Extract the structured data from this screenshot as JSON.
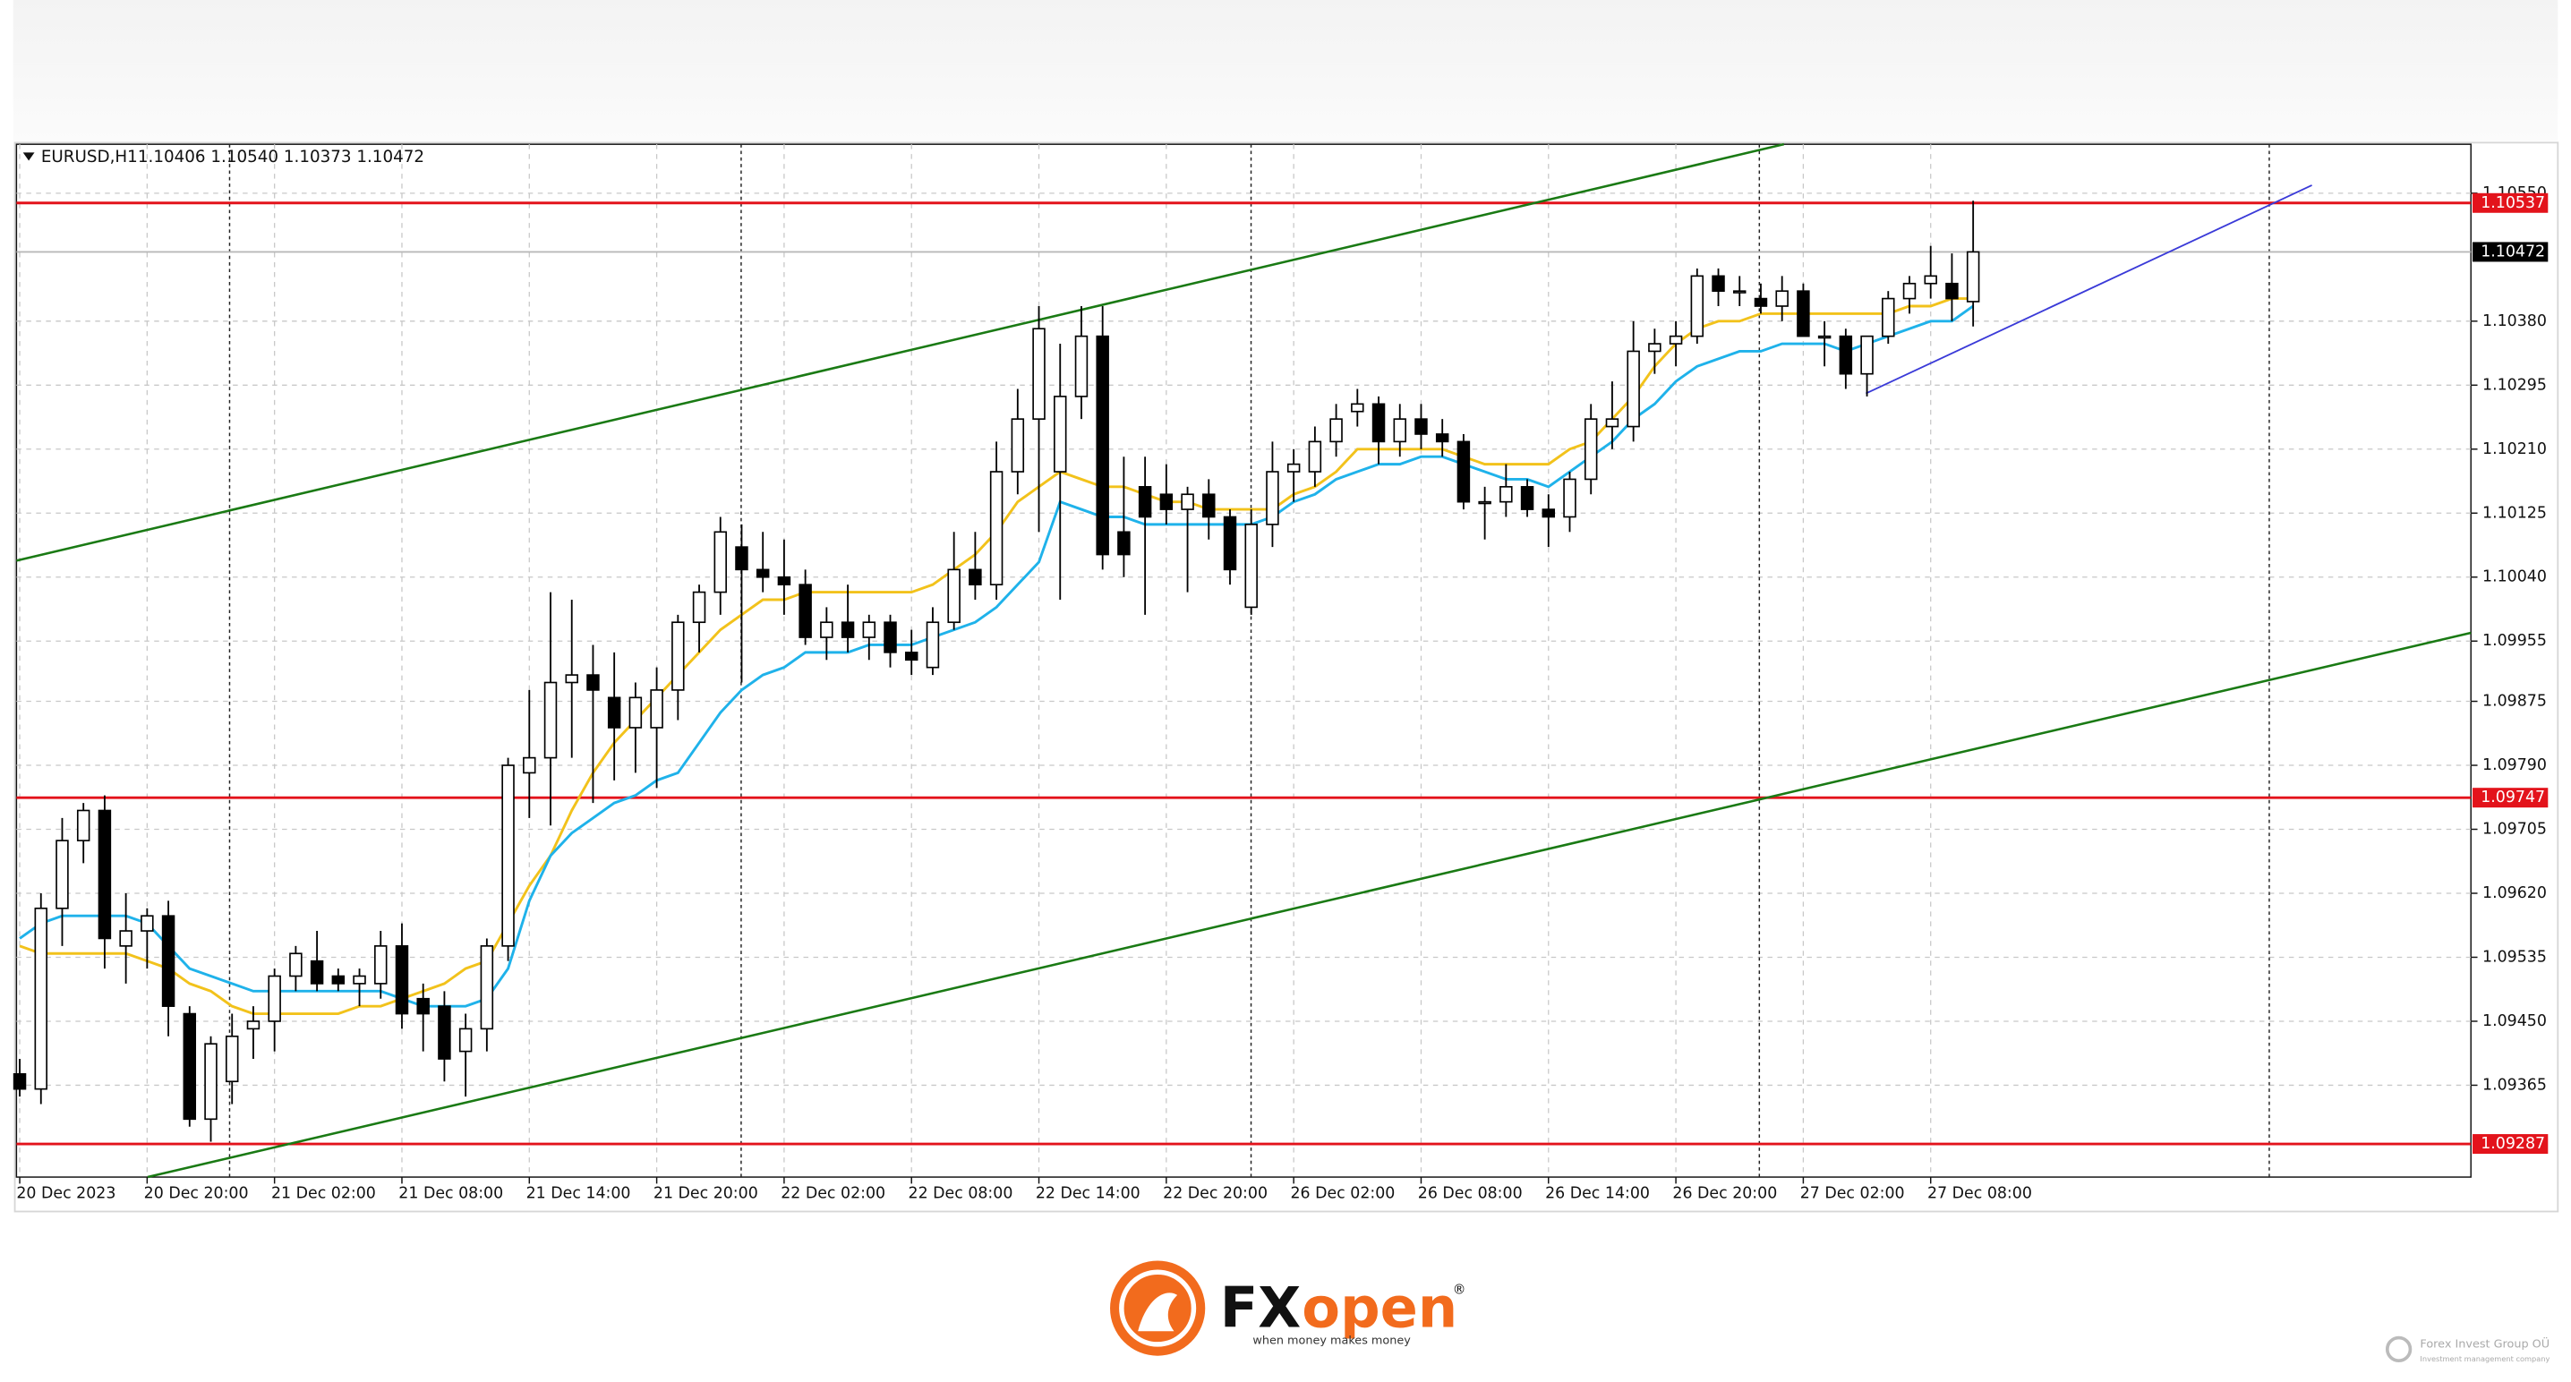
{
  "chart_data": {
    "type": "candlestick",
    "symbol": "EURUSD,H1",
    "quote": "1.10406 1.10540 1.10373 1.10472",
    "categories": [
      "20 Dec 2023",
      null,
      null,
      null,
      null,
      null,
      "20 Dec 20:00",
      null,
      null,
      null,
      null,
      null,
      "21 Dec 02:00",
      null,
      null,
      null,
      null,
      null,
      "21 Dec 08:00",
      null,
      null,
      null,
      null,
      null,
      "21 Dec 14:00",
      null,
      null,
      null,
      null,
      null,
      "21 Dec 20:00",
      null,
      null,
      null,
      null,
      null,
      "22 Dec 02:00",
      null,
      null,
      null,
      null,
      null,
      "22 Dec 08:00",
      null,
      null,
      null,
      null,
      null,
      "22 Dec 14:00",
      null,
      null,
      null,
      null,
      null,
      "22 Dec 20:00",
      null,
      null,
      null,
      null,
      null,
      "26 Dec 02:00",
      null,
      null,
      null,
      null,
      null,
      "26 Dec 08:00",
      null,
      null,
      null,
      null,
      null,
      "26 Dec 14:00",
      null,
      null,
      null,
      null,
      null,
      "26 Dec 20:00",
      null,
      null,
      null,
      null,
      null,
      "27 Dec 02:00",
      null,
      null,
      null,
      null,
      null,
      "27 Dec 08:00",
      null,
      null
    ],
    "ohlc": [
      [
        1.0938,
        1.094,
        1.0935,
        1.0936
      ],
      [
        1.0936,
        1.0962,
        1.0934,
        1.096
      ],
      [
        1.096,
        1.0972,
        1.0955,
        1.0969
      ],
      [
        1.0969,
        1.0974,
        1.0966,
        1.0973
      ],
      [
        1.0973,
        1.0975,
        1.0952,
        1.0956
      ],
      [
        1.0955,
        1.0962,
        1.095,
        1.0957
      ],
      [
        1.0957,
        1.096,
        1.0952,
        1.0959
      ],
      [
        1.0959,
        1.0961,
        1.0943,
        1.0947
      ],
      [
        1.0946,
        1.0947,
        1.0931,
        1.0932
      ],
      [
        1.0932,
        1.0943,
        1.0929,
        1.0942
      ],
      [
        1.0937,
        1.0946,
        1.0934,
        1.0943
      ],
      [
        1.0944,
        1.0947,
        1.094,
        1.0945
      ],
      [
        1.0945,
        1.0952,
        1.0941,
        1.0951
      ],
      [
        1.0951,
        1.0955,
        1.0949,
        1.0954
      ],
      [
        1.0953,
        1.0957,
        1.0949,
        1.095
      ],
      [
        1.0951,
        1.0952,
        1.0949,
        1.095
      ],
      [
        1.095,
        1.0952,
        1.0947,
        1.0951
      ],
      [
        1.095,
        1.0957,
        1.0948,
        1.0955
      ],
      [
        1.0955,
        1.0958,
        1.0944,
        1.0946
      ],
      [
        1.0948,
        1.095,
        1.0941,
        1.0946
      ],
      [
        1.0947,
        1.0949,
        1.0937,
        1.094
      ],
      [
        1.0941,
        1.0946,
        1.0935,
        1.0944
      ],
      [
        1.0944,
        1.0956,
        1.0941,
        1.0955
      ],
      [
        1.0955,
        1.098,
        1.0953,
        1.0979
      ],
      [
        1.0978,
        1.0989,
        1.0972,
        1.098
      ],
      [
        1.098,
        1.1002,
        1.0971,
        1.099
      ],
      [
        1.099,
        1.1001,
        1.098,
        1.0991
      ],
      [
        1.0991,
        1.0995,
        1.0974,
        1.0989
      ],
      [
        1.0988,
        1.0994,
        1.0977,
        1.0984
      ],
      [
        1.0984,
        1.099,
        1.0978,
        1.0988
      ],
      [
        1.0984,
        1.0992,
        1.0976,
        1.0989
      ],
      [
        1.0989,
        1.0999,
        1.0985,
        1.0998
      ],
      [
        1.0998,
        1.1003,
        1.0994,
        1.1002
      ],
      [
        1.1002,
        1.1012,
        1.0999,
        1.101
      ],
      [
        1.1008,
        1.1011,
        1.099,
        1.1005
      ],
      [
        1.1005,
        1.101,
        1.1002,
        1.1004
      ],
      [
        1.1004,
        1.1009,
        1.0999,
        1.1003
      ],
      [
        1.1003,
        1.1005,
        1.0995,
        1.0996
      ],
      [
        1.0996,
        1.1,
        1.0993,
        1.0998
      ],
      [
        1.0998,
        1.1003,
        1.0994,
        1.0996
      ],
      [
        1.0996,
        1.0999,
        1.0993,
        1.0998
      ],
      [
        1.0998,
        1.0999,
        1.0992,
        1.0994
      ],
      [
        1.0994,
        1.0997,
        1.0991,
        1.0993
      ],
      [
        1.0992,
        1.1,
        1.0991,
        1.0998
      ],
      [
        1.0998,
        1.101,
        1.0997,
        1.1005
      ],
      [
        1.1005,
        1.101,
        1.1001,
        1.1003
      ],
      [
        1.1003,
        1.1022,
        1.1001,
        1.1018
      ],
      [
        1.1018,
        1.1029,
        1.1015,
        1.1025
      ],
      [
        1.1025,
        1.104,
        1.101,
        1.1037
      ],
      [
        1.1018,
        1.1035,
        1.1001,
        1.1028
      ],
      [
        1.1028,
        1.104,
        1.1025,
        1.1036
      ],
      [
        1.1036,
        1.104,
        1.1005,
        1.1007
      ],
      [
        1.101,
        1.102,
        1.1004,
        1.1007
      ],
      [
        1.1016,
        1.102,
        1.0999,
        1.1012
      ],
      [
        1.1015,
        1.1019,
        1.1011,
        1.1013
      ],
      [
        1.1013,
        1.1016,
        1.1002,
        1.1015
      ],
      [
        1.1015,
        1.1017,
        1.1009,
        1.1012
      ],
      [
        1.1012,
        1.1013,
        1.1003,
        1.1005
      ],
      [
        1.1,
        1.1013,
        1.0999,
        1.1011
      ],
      [
        1.1011,
        1.1022,
        1.1008,
        1.1018
      ],
      [
        1.1018,
        1.1021,
        1.1014,
        1.1019
      ],
      [
        1.1018,
        1.1024,
        1.1016,
        1.1022
      ],
      [
        1.1022,
        1.1027,
        1.102,
        1.1025
      ],
      [
        1.1026,
        1.1029,
        1.1024,
        1.1027
      ],
      [
        1.1027,
        1.1028,
        1.1019,
        1.1022
      ],
      [
        1.1022,
        1.1027,
        1.102,
        1.1025
      ],
      [
        1.1025,
        1.1027,
        1.1021,
        1.1023
      ],
      [
        1.1023,
        1.1025,
        1.102,
        1.1022
      ],
      [
        1.1022,
        1.1023,
        1.1013,
        1.1014
      ],
      [
        1.1014,
        1.1016,
        1.1009,
        1.1014
      ],
      [
        1.1014,
        1.1019,
        1.1012,
        1.1016
      ],
      [
        1.1016,
        1.1017,
        1.1012,
        1.1013
      ],
      [
        1.1013,
        1.1015,
        1.1008,
        1.1012
      ],
      [
        1.1012,
        1.1018,
        1.101,
        1.1017
      ],
      [
        1.1017,
        1.1027,
        1.1015,
        1.1025
      ],
      [
        1.1024,
        1.103,
        1.1021,
        1.1025
      ],
      [
        1.1024,
        1.1038,
        1.1022,
        1.1034
      ],
      [
        1.1034,
        1.1037,
        1.1031,
        1.1035
      ],
      [
        1.1035,
        1.1038,
        1.1032,
        1.1036
      ],
      [
        1.1036,
        1.1045,
        1.1035,
        1.1044
      ],
      [
        1.1044,
        1.1045,
        1.104,
        1.1042
      ],
      [
        1.1042,
        1.1044,
        1.104,
        1.1042
      ],
      [
        1.1041,
        1.1043,
        1.1039,
        1.104
      ],
      [
        1.104,
        1.1044,
        1.1038,
        1.1042
      ],
      [
        1.1042,
        1.1043,
        1.1036,
        1.1036
      ],
      [
        1.1036,
        1.1038,
        1.1032,
        1.1036
      ],
      [
        1.1036,
        1.1037,
        1.1029,
        1.1031
      ],
      [
        1.1031,
        1.1036,
        1.1028,
        1.1036
      ],
      [
        1.1036,
        1.1042,
        1.1035,
        1.1041
      ],
      [
        1.1041,
        1.1044,
        1.1039,
        1.1043
      ],
      [
        1.1043,
        1.1048,
        1.1041,
        1.1044
      ],
      [
        1.1043,
        1.1047,
        1.1038,
        1.1041
      ],
      [
        1.10406,
        1.1054,
        1.10373,
        1.10472
      ]
    ],
    "lines": [
      {
        "color": "#f2c21b",
        "values": [
          1.0955,
          1.0954,
          1.0954,
          1.0954,
          1.0954,
          1.0954,
          1.0953,
          1.0952,
          1.095,
          1.0949,
          1.0947,
          1.0946,
          1.0946,
          1.0946,
          1.0946,
          1.0946,
          1.0947,
          1.0947,
          1.0948,
          1.0949,
          1.095,
          1.0952,
          1.0953,
          1.0958,
          1.0963,
          1.0967,
          1.0973,
          1.0978,
          1.0982,
          1.0985,
          1.0988,
          1.0991,
          1.0994,
          1.0997,
          1.0999,
          1.1001,
          1.1001,
          1.1002,
          1.1002,
          1.1002,
          1.1002,
          1.1002,
          1.1002,
          1.1003,
          1.1005,
          1.1007,
          1.101,
          1.1014,
          1.1016,
          1.1018,
          1.1017,
          1.1016,
          1.1016,
          1.1015,
          1.1014,
          1.1014,
          1.1013,
          1.1013,
          1.1013,
          1.1013,
          1.1015,
          1.1016,
          1.1018,
          1.1021,
          1.1021,
          1.1021,
          1.1021,
          1.1021,
          1.102,
          1.1019,
          1.1019,
          1.1019,
          1.1019,
          1.1021,
          1.1022,
          1.1025,
          1.1028,
          1.1032,
          1.1035,
          1.1037,
          1.1038,
          1.1038,
          1.1039,
          1.1039,
          1.1039,
          1.1039,
          1.1039,
          1.1039,
          1.1039,
          1.104,
          1.104,
          1.1041,
          1.1041
        ]
      },
      {
        "color": "#1fb2ea",
        "values": [
          1.0956,
          1.0958,
          1.0959,
          1.0959,
          1.0959,
          1.0959,
          1.0958,
          1.0955,
          1.0952,
          1.0951,
          1.095,
          1.0949,
          1.0949,
          1.0949,
          1.0949,
          1.0949,
          1.0949,
          1.0949,
          1.0948,
          1.0947,
          1.0947,
          1.0947,
          1.0948,
          1.0952,
          1.0961,
          1.0967,
          1.097,
          1.0972,
          1.0974,
          1.0975,
          1.0977,
          1.0978,
          1.0982,
          1.0986,
          1.0989,
          1.0991,
          1.0992,
          1.0994,
          1.0994,
          1.0994,
          1.0995,
          1.0995,
          1.0995,
          1.0996,
          1.0997,
          1.0998,
          1.1,
          1.1003,
          1.1006,
          1.1014,
          1.1013,
          1.1012,
          1.1012,
          1.1011,
          1.1011,
          1.1011,
          1.1011,
          1.1011,
          1.1011,
          1.1012,
          1.1014,
          1.1015,
          1.1017,
          1.1018,
          1.1019,
          1.1019,
          1.102,
          1.102,
          1.1019,
          1.1018,
          1.1017,
          1.1017,
          1.1016,
          1.1018,
          1.102,
          1.1022,
          1.1025,
          1.1027,
          1.103,
          1.1032,
          1.1033,
          1.1034,
          1.1034,
          1.1035,
          1.1035,
          1.1035,
          1.1034,
          1.1035,
          1.1036,
          1.1037,
          1.1038,
          1.1038,
          1.104
        ]
      }
    ],
    "levels": [
      {
        "value": 1.10537,
        "color": "#e3131b"
      },
      {
        "value": 1.09747,
        "color": "#e3131b"
      },
      {
        "value": 1.09287,
        "color": "#e3131b"
      }
    ],
    "last_price": 1.10472,
    "ylim": [
      1.09243,
      1.10615
    ],
    "yticks": [
      {
        "value": 1.1055,
        "label": "1.10550"
      },
      {
        "value": 1.1038,
        "label": "1.10380"
      },
      1.10295,
      {
        "value": 1.1021,
        "label": "1.10210"
      },
      1.10125,
      {
        "value": 1.1004,
        "label": "1.10040"
      },
      1.09955,
      1.09875,
      {
        "value": 1.0979,
        "label": "1.09790"
      },
      1.09705,
      {
        "value": 1.0962,
        "label": "1.09620"
      },
      1.09535,
      {
        "value": 1.0945,
        "label": "1.09450"
      },
      1.09365
    ],
    "grid": true
  },
  "logo": {
    "brand_dark": "FX",
    "brand_accent": "open",
    "registered": "®",
    "tagline": "when money makes money"
  },
  "footer": {
    "company": "Forex Invest Group OÜ",
    "subtitle": "Investment management company"
  }
}
